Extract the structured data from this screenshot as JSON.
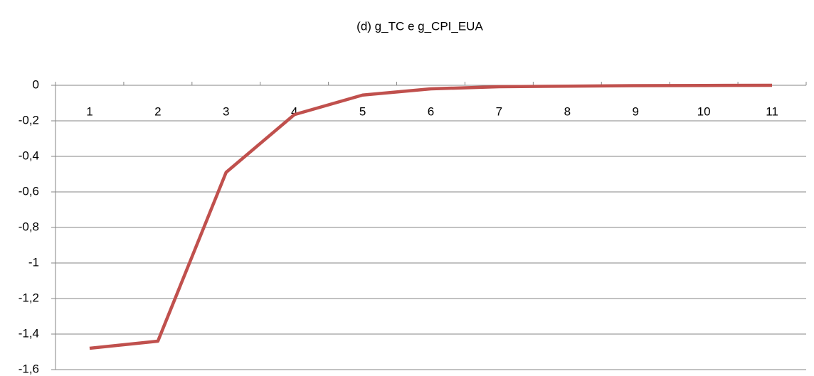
{
  "chart_data": {
    "type": "line",
    "title": "(d) g_TC e g_CPI_EUA",
    "categories": [
      "1",
      "2",
      "3",
      "4",
      "5",
      "6",
      "7",
      "8",
      "9",
      "10",
      "11"
    ],
    "series": [
      {
        "color": "#c0504d",
        "values": [
          -1.48,
          -1.44,
          -0.49,
          -0.165,
          -0.055,
          -0.02,
          -0.008,
          -0.005,
          -0.002,
          -0.001,
          0
        ]
      }
    ],
    "ylim": [
      -1.6,
      0
    ],
    "yticks": [
      {
        "value": -1.6,
        "label": "-1,6"
      },
      {
        "value": -1.4,
        "label": "-1,4"
      },
      {
        "value": -1.2,
        "label": "-1,2"
      },
      -1,
      {
        "value": -0.8,
        "label": "-0,8"
      },
      {
        "value": -0.6,
        "label": "-0,6"
      },
      {
        "value": -0.4,
        "label": "-0,4"
      },
      {
        "value": -0.2,
        "label": "-0,2"
      },
      0
    ],
    "grid": true
  }
}
